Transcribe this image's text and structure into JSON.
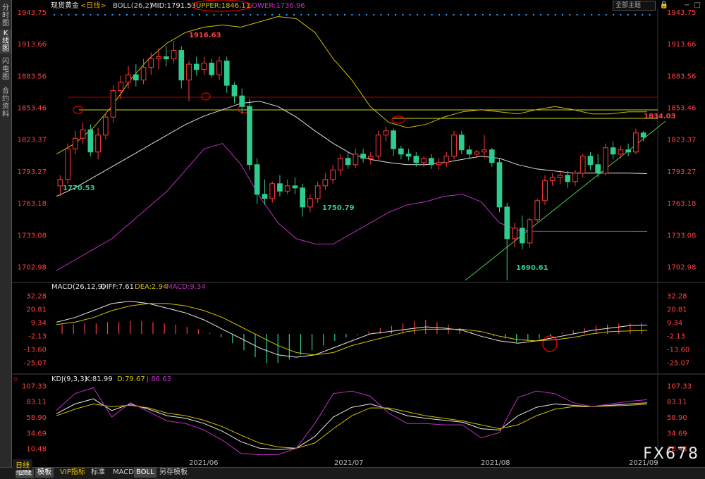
{
  "sidebar": {
    "tabs": [
      {
        "label": "分时图"
      },
      {
        "label": "K线图"
      },
      {
        "label": "闪电图"
      },
      {
        "label": "合约资料"
      }
    ]
  },
  "header": {
    "instrument": "现货黄金",
    "period": "<日线>",
    "indicator": "BOLL(26,2)",
    "mid": "MID:1791.53",
    "upper": "UPPER:1846.11",
    "lower": "LOWER:1736.96",
    "main_list": "全部主题"
  },
  "macd_panel": {
    "title": "MACD(26,12,9)",
    "diff": "DIFF:7.61",
    "dea": "DEA:2.94",
    "macd": "MACD:9.34",
    "ticks": [
      "32.28",
      "20.81",
      "9.34",
      "-2.13",
      "-13.60",
      "-25.07"
    ]
  },
  "kdj_panel": {
    "title": "KDJ(9,3,3)",
    "k": "K:81.99",
    "d": "D:79.67",
    "j": "J:86.63",
    "ticks": [
      "107.33",
      "83.11",
      "58.90",
      "34.69",
      "10.48"
    ]
  },
  "price_axis": [
    "1943.75",
    "1913.66",
    "1883.56",
    "1853.46",
    "1823.37",
    "1793.27",
    "1763.18",
    "1733.08",
    "1702.98"
  ],
  "annotations": {
    "high_1": "1916.63",
    "low_1": "1770.53",
    "low_2": "1750.79",
    "low_3": "1690.61",
    "last": "1834.03"
  },
  "date_axis": [
    "2021/06",
    "2021/07",
    "2021/08",
    "2021/09"
  ],
  "bottom_tabs": [
    {
      "label": "日线"
    },
    {
      "label": "指标"
    },
    {
      "label": "模板"
    },
    {
      "label": "VIP指标"
    },
    {
      "label": "标准"
    },
    {
      "label": "MACD"
    },
    {
      "label": "BOLL"
    },
    {
      "label": "另存模板"
    }
  ],
  "watermark": "FX678",
  "colors": {
    "up": "#ff3b3b",
    "down": "#2ecc8f",
    "boll_upper": "#d4c200",
    "boll_mid": "#e0e0e0",
    "boll_lower": "#c12fc1",
    "price_label": "#ff4040",
    "volume_label": "#2ecc8f"
  },
  "chart_data": {
    "type": "candlestick",
    "xlabel": "",
    "ylabel": "",
    "ylim": [
      1680,
      1950
    ],
    "candles": [
      {
        "o": 1780,
        "h": 1790,
        "c": 1786,
        "l": 1770.5
      },
      {
        "o": 1786,
        "h": 1820,
        "c": 1815,
        "l": 1782
      },
      {
        "o": 1815,
        "h": 1832,
        "c": 1825,
        "l": 1810
      },
      {
        "o": 1825,
        "h": 1840,
        "c": 1833,
        "l": 1820
      },
      {
        "o": 1833,
        "h": 1838,
        "c": 1812,
        "l": 1808
      },
      {
        "o": 1812,
        "h": 1835,
        "c": 1828,
        "l": 1805
      },
      {
        "o": 1828,
        "h": 1848,
        "c": 1845,
        "l": 1824
      },
      {
        "o": 1845,
        "h": 1875,
        "c": 1870,
        "l": 1840
      },
      {
        "o": 1870,
        "h": 1884,
        "c": 1878,
        "l": 1862
      },
      {
        "o": 1878,
        "h": 1893,
        "c": 1885,
        "l": 1872
      },
      {
        "o": 1885,
        "h": 1895,
        "c": 1880,
        "l": 1874
      },
      {
        "o": 1880,
        "h": 1900,
        "c": 1892,
        "l": 1876
      },
      {
        "o": 1892,
        "h": 1906,
        "c": 1900,
        "l": 1885
      },
      {
        "o": 1900,
        "h": 1910,
        "c": 1902,
        "l": 1890
      },
      {
        "o": 1902,
        "h": 1912,
        "c": 1900,
        "l": 1893
      },
      {
        "o": 1900,
        "h": 1916.63,
        "c": 1908,
        "l": 1896
      },
      {
        "o": 1908,
        "h": 1912,
        "c": 1880,
        "l": 1872
      },
      {
        "o": 1880,
        "h": 1898,
        "c": 1895,
        "l": 1860
      },
      {
        "o": 1895,
        "h": 1902,
        "c": 1890,
        "l": 1884
      },
      {
        "o": 1890,
        "h": 1902,
        "c": 1896,
        "l": 1885
      },
      {
        "o": 1896,
        "h": 1900,
        "c": 1885,
        "l": 1882
      },
      {
        "o": 1885,
        "h": 1902,
        "c": 1898,
        "l": 1880
      },
      {
        "o": 1898,
        "h": 1902,
        "c": 1875,
        "l": 1868
      },
      {
        "o": 1875,
        "h": 1878,
        "c": 1865,
        "l": 1858
      },
      {
        "o": 1865,
        "h": 1872,
        "c": 1855,
        "l": 1848
      },
      {
        "o": 1855,
        "h": 1862,
        "c": 1800,
        "l": 1795
      },
      {
        "o": 1800,
        "h": 1806,
        "c": 1772,
        "l": 1763
      },
      {
        "o": 1772,
        "h": 1786,
        "c": 1768,
        "l": 1762
      },
      {
        "o": 1768,
        "h": 1784,
        "c": 1782,
        "l": 1764
      },
      {
        "o": 1782,
        "h": 1790,
        "c": 1775,
        "l": 1770
      },
      {
        "o": 1775,
        "h": 1786,
        "c": 1780,
        "l": 1772
      },
      {
        "o": 1780,
        "h": 1788,
        "c": 1778,
        "l": 1772
      },
      {
        "o": 1778,
        "h": 1782,
        "c": 1760,
        "l": 1750.79
      },
      {
        "o": 1760,
        "h": 1772,
        "c": 1768,
        "l": 1755
      },
      {
        "o": 1768,
        "h": 1784,
        "c": 1780,
        "l": 1764
      },
      {
        "o": 1780,
        "h": 1792,
        "c": 1786,
        "l": 1776
      },
      {
        "o": 1786,
        "h": 1800,
        "c": 1795,
        "l": 1782
      },
      {
        "o": 1795,
        "h": 1810,
        "c": 1806,
        "l": 1790
      },
      {
        "o": 1806,
        "h": 1812,
        "c": 1800,
        "l": 1796
      },
      {
        "o": 1800,
        "h": 1815,
        "c": 1810,
        "l": 1797
      },
      {
        "o": 1810,
        "h": 1815,
        "c": 1806,
        "l": 1802
      },
      {
        "o": 1806,
        "h": 1812,
        "c": 1808,
        "l": 1800
      },
      {
        "o": 1808,
        "h": 1832,
        "c": 1828,
        "l": 1805
      },
      {
        "o": 1828,
        "h": 1836,
        "c": 1832,
        "l": 1822
      },
      {
        "o": 1832,
        "h": 1834,
        "c": 1815,
        "l": 1808
      },
      {
        "o": 1815,
        "h": 1818,
        "c": 1810,
        "l": 1805
      },
      {
        "o": 1810,
        "h": 1815,
        "c": 1808,
        "l": 1804
      },
      {
        "o": 1808,
        "h": 1812,
        "c": 1802,
        "l": 1798
      },
      {
        "o": 1802,
        "h": 1808,
        "c": 1806,
        "l": 1798
      },
      {
        "o": 1806,
        "h": 1810,
        "c": 1800,
        "l": 1796
      },
      {
        "o": 1800,
        "h": 1806,
        "c": 1802,
        "l": 1795
      },
      {
        "o": 1802,
        "h": 1812,
        "c": 1808,
        "l": 1798
      },
      {
        "o": 1808,
        "h": 1832,
        "c": 1828,
        "l": 1805
      },
      {
        "o": 1828,
        "h": 1832,
        "c": 1814,
        "l": 1810
      },
      {
        "o": 1814,
        "h": 1818,
        "c": 1810,
        "l": 1805
      },
      {
        "o": 1810,
        "h": 1814,
        "c": 1812,
        "l": 1806
      },
      {
        "o": 1812,
        "h": 1828,
        "c": 1814,
        "l": 1806
      },
      {
        "o": 1814,
        "h": 1816,
        "c": 1802,
        "l": 1798
      },
      {
        "o": 1802,
        "h": 1806,
        "c": 1760,
        "l": 1755
      },
      {
        "o": 1760,
        "h": 1764,
        "c": 1730,
        "l": 1690.61
      },
      {
        "o": 1730,
        "h": 1745,
        "c": 1740,
        "l": 1722
      },
      {
        "o": 1740,
        "h": 1752,
        "c": 1726,
        "l": 1720
      },
      {
        "o": 1726,
        "h": 1750,
        "c": 1748,
        "l": 1722
      },
      {
        "o": 1748,
        "h": 1768,
        "c": 1766,
        "l": 1746
      },
      {
        "o": 1766,
        "h": 1790,
        "c": 1785,
        "l": 1762
      },
      {
        "o": 1785,
        "h": 1792,
        "c": 1788,
        "l": 1780
      },
      {
        "o": 1788,
        "h": 1795,
        "c": 1790,
        "l": 1782
      },
      {
        "o": 1790,
        "h": 1794,
        "c": 1784,
        "l": 1778
      },
      {
        "o": 1784,
        "h": 1795,
        "c": 1792,
        "l": 1780
      },
      {
        "o": 1792,
        "h": 1810,
        "c": 1808,
        "l": 1788
      },
      {
        "o": 1808,
        "h": 1812,
        "c": 1800,
        "l": 1795
      },
      {
        "o": 1800,
        "h": 1810,
        "c": 1792,
        "l": 1788
      },
      {
        "o": 1792,
        "h": 1820,
        "c": 1816,
        "l": 1790
      },
      {
        "o": 1816,
        "h": 1822,
        "c": 1810,
        "l": 1805
      },
      {
        "o": 1810,
        "h": 1818,
        "c": 1814,
        "l": 1806
      },
      {
        "o": 1814,
        "h": 1820,
        "c": 1812,
        "l": 1808
      },
      {
        "o": 1812,
        "h": 1834.03,
        "c": 1830,
        "l": 1810
      },
      {
        "o": 1830,
        "h": 1832,
        "c": 1826,
        "l": 1822
      }
    ],
    "boll_upper": [
      1810,
      1820,
      1835,
      1855,
      1880,
      1900,
      1915,
      1925,
      1930,
      1932,
      1930,
      1935,
      1940,
      1938,
      1925,
      1900,
      1880,
      1855,
      1840,
      1835,
      1838,
      1845,
      1850,
      1852,
      1850,
      1848,
      1852,
      1855,
      1852,
      1848,
      1848,
      1850,
      1850
    ],
    "boll_mid": [
      1770,
      1778,
      1788,
      1798,
      1808,
      1818,
      1828,
      1838,
      1846,
      1852,
      1858,
      1860,
      1855,
      1845,
      1832,
      1820,
      1810,
      1805,
      1802,
      1800,
      1800,
      1802,
      1805,
      1808,
      1806,
      1800,
      1796,
      1794,
      1792,
      1792,
      1792,
      1792,
      1791.53
    ],
    "boll_lower": [
      1700,
      1710,
      1720,
      1730,
      1745,
      1760,
      1775,
      1795,
      1815,
      1820,
      1800,
      1770,
      1745,
      1730,
      1725,
      1725,
      1735,
      1745,
      1755,
      1762,
      1765,
      1770,
      1772,
      1765,
      1745,
      1738,
      1737,
      1737,
      1737,
      1737,
      1737,
      1737,
      1736.96
    ],
    "macd_hist": [
      8,
      8,
      9,
      9,
      10,
      10,
      11,
      11,
      10,
      9,
      8,
      6,
      4,
      1,
      -3,
      -8,
      -14,
      -20,
      -25,
      -25,
      -22,
      -18,
      -14,
      -10,
      -6,
      -3,
      -1,
      2,
      5,
      7,
      9,
      11,
      12,
      10,
      8,
      5,
      2,
      0,
      -2,
      -4,
      -7,
      -6,
      -4,
      -2,
      1,
      3,
      5,
      7,
      8,
      9,
      9,
      9.34
    ],
    "macd_diff": [
      10,
      14,
      20,
      26,
      28,
      26,
      22,
      18,
      12,
      4,
      -4,
      -12,
      -18,
      -20,
      -18,
      -12,
      -6,
      0,
      2,
      4,
      6,
      5,
      3,
      -2,
      -6,
      -8,
      -6,
      -3,
      0,
      3,
      5,
      7,
      7.61
    ],
    "macd_dea": [
      8,
      10,
      14,
      20,
      24,
      26,
      26,
      24,
      20,
      14,
      6,
      -2,
      -10,
      -16,
      -18,
      -16,
      -10,
      -6,
      -2,
      2,
      4,
      4,
      4,
      2,
      -2,
      -5,
      -6,
      -5,
      -3,
      0,
      2,
      2.5,
      2.94
    ],
    "kdj_k": [
      65,
      80,
      88,
      70,
      80,
      72,
      62,
      58,
      50,
      38,
      22,
      12,
      10,
      12,
      30,
      60,
      75,
      80,
      72,
      62,
      58,
      55,
      52,
      42,
      40,
      62,
      75,
      80,
      78,
      76,
      78,
      80,
      81.99
    ],
    "kdj_d": [
      62,
      72,
      80,
      76,
      78,
      74,
      66,
      62,
      55,
      45,
      32,
      20,
      14,
      12,
      20,
      42,
      62,
      74,
      74,
      68,
      62,
      58,
      54,
      48,
      42,
      48,
      62,
      72,
      76,
      76,
      77,
      78,
      79.67
    ],
    "kdj_j": [
      70,
      96,
      105,
      60,
      82,
      68,
      54,
      50,
      40,
      24,
      4,
      2,
      2,
      12,
      50,
      96,
      100,
      92,
      66,
      50,
      50,
      48,
      48,
      28,
      36,
      90,
      100,
      96,
      82,
      76,
      80,
      84,
      86.63
    ]
  }
}
